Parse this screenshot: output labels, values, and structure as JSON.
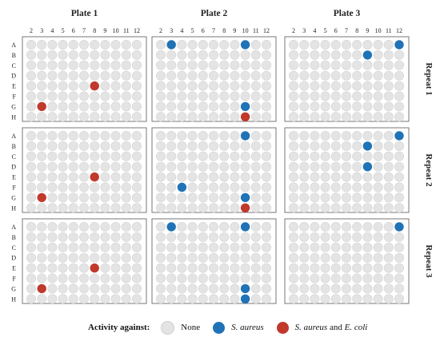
{
  "chart_data": {
    "type": "scatter",
    "plates": [
      "Plate 1",
      "Plate 2",
      "Plate 3"
    ],
    "repeats": [
      "Repeat 1",
      "Repeat 2",
      "Repeat 3"
    ],
    "columns": [
      "2",
      "3",
      "4",
      "5",
      "6",
      "7",
      "8",
      "9",
      "10",
      "11",
      "12"
    ],
    "rows": [
      "A",
      "B",
      "C",
      "D",
      "E",
      "F",
      "G",
      "H"
    ],
    "colors": {
      "none": "#e4e4e4",
      "s_aureus": "#1f73b6",
      "both": "#c0392b",
      "panel_border": "#777777"
    },
    "hits": [
      {
        "repeat": "Repeat 1",
        "plate": "Plate 1",
        "row": "E",
        "col": "8",
        "activity": "both"
      },
      {
        "repeat": "Repeat 1",
        "plate": "Plate 1",
        "row": "G",
        "col": "3",
        "activity": "both"
      },
      {
        "repeat": "Repeat 1",
        "plate": "Plate 2",
        "row": "A",
        "col": "3",
        "activity": "s_aureus"
      },
      {
        "repeat": "Repeat 1",
        "plate": "Plate 2",
        "row": "A",
        "col": "10",
        "activity": "s_aureus"
      },
      {
        "repeat": "Repeat 1",
        "plate": "Plate 2",
        "row": "G",
        "col": "10",
        "activity": "s_aureus"
      },
      {
        "repeat": "Repeat 1",
        "plate": "Plate 2",
        "row": "H",
        "col": "10",
        "activity": "both"
      },
      {
        "repeat": "Repeat 1",
        "plate": "Plate 3",
        "row": "A",
        "col": "12",
        "activity": "s_aureus"
      },
      {
        "repeat": "Repeat 1",
        "plate": "Plate 3",
        "row": "B",
        "col": "9",
        "activity": "s_aureus"
      },
      {
        "repeat": "Repeat 2",
        "plate": "Plate 1",
        "row": "E",
        "col": "8",
        "activity": "both"
      },
      {
        "repeat": "Repeat 2",
        "plate": "Plate 1",
        "row": "G",
        "col": "3",
        "activity": "both"
      },
      {
        "repeat": "Repeat 2",
        "plate": "Plate 2",
        "row": "A",
        "col": "10",
        "activity": "s_aureus"
      },
      {
        "repeat": "Repeat 2",
        "plate": "Plate 2",
        "row": "F",
        "col": "4",
        "activity": "s_aureus"
      },
      {
        "repeat": "Repeat 2",
        "plate": "Plate 2",
        "row": "G",
        "col": "10",
        "activity": "s_aureus"
      },
      {
        "repeat": "Repeat 2",
        "plate": "Plate 2",
        "row": "H",
        "col": "10",
        "activity": "both"
      },
      {
        "repeat": "Repeat 2",
        "plate": "Plate 3",
        "row": "A",
        "col": "12",
        "activity": "s_aureus"
      },
      {
        "repeat": "Repeat 2",
        "plate": "Plate 3",
        "row": "B",
        "col": "9",
        "activity": "s_aureus"
      },
      {
        "repeat": "Repeat 2",
        "plate": "Plate 3",
        "row": "D",
        "col": "9",
        "activity": "s_aureus"
      },
      {
        "repeat": "Repeat 3",
        "plate": "Plate 1",
        "row": "E",
        "col": "8",
        "activity": "both"
      },
      {
        "repeat": "Repeat 3",
        "plate": "Plate 1",
        "row": "G",
        "col": "3",
        "activity": "both"
      },
      {
        "repeat": "Repeat 3",
        "plate": "Plate 2",
        "row": "A",
        "col": "3",
        "activity": "s_aureus"
      },
      {
        "repeat": "Repeat 3",
        "plate": "Plate 2",
        "row": "A",
        "col": "10",
        "activity": "s_aureus"
      },
      {
        "repeat": "Repeat 3",
        "plate": "Plate 2",
        "row": "G",
        "col": "10",
        "activity": "s_aureus"
      },
      {
        "repeat": "Repeat 3",
        "plate": "Plate 2",
        "row": "H",
        "col": "10",
        "activity": "s_aureus"
      },
      {
        "repeat": "Repeat 3",
        "plate": "Plate 3",
        "row": "A",
        "col": "12",
        "activity": "s_aureus"
      }
    ],
    "legend": {
      "title": "Activity against:",
      "none_label": "None",
      "s_aureus_label": "S. aureus",
      "both_prefix": "S. aureus",
      "both_middle": " and ",
      "both_suffix": "E. coli",
      "position": "bottom"
    }
  }
}
